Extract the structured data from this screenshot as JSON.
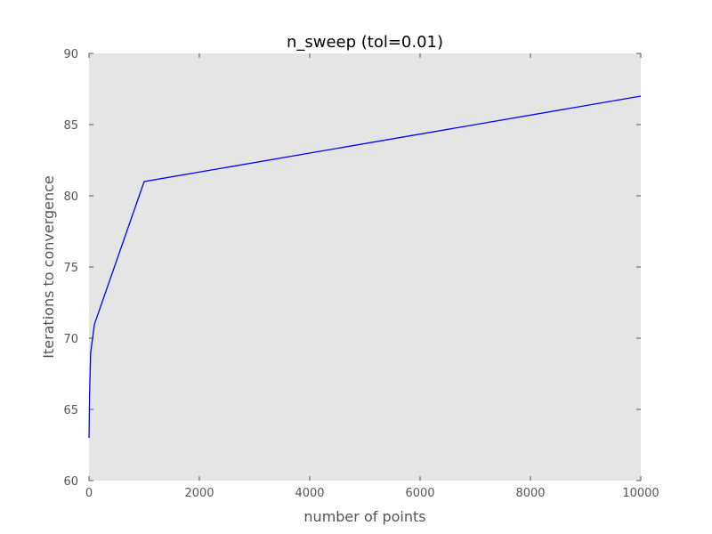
{
  "chart_data": {
    "type": "line",
    "title": "n_sweep (tol=0.01)",
    "xlabel": "number of points",
    "ylabel": "Iterations to convergence",
    "xlim": [
      0,
      10000
    ],
    "ylim": [
      60,
      90
    ],
    "xticks": [
      0,
      2000,
      4000,
      6000,
      8000,
      10000
    ],
    "yticks": [
      60,
      65,
      70,
      75,
      80,
      85,
      90
    ],
    "grid": false,
    "series": [
      {
        "x": [
          1,
          10,
          30,
          100,
          1000,
          10000
        ],
        "y": [
          63,
          66,
          69,
          71,
          81,
          87
        ]
      }
    ]
  },
  "colors": {
    "plot_background": "#e5e5e5",
    "line": "#0000ff",
    "frame": "#ffffff",
    "tick": "#555555"
  }
}
